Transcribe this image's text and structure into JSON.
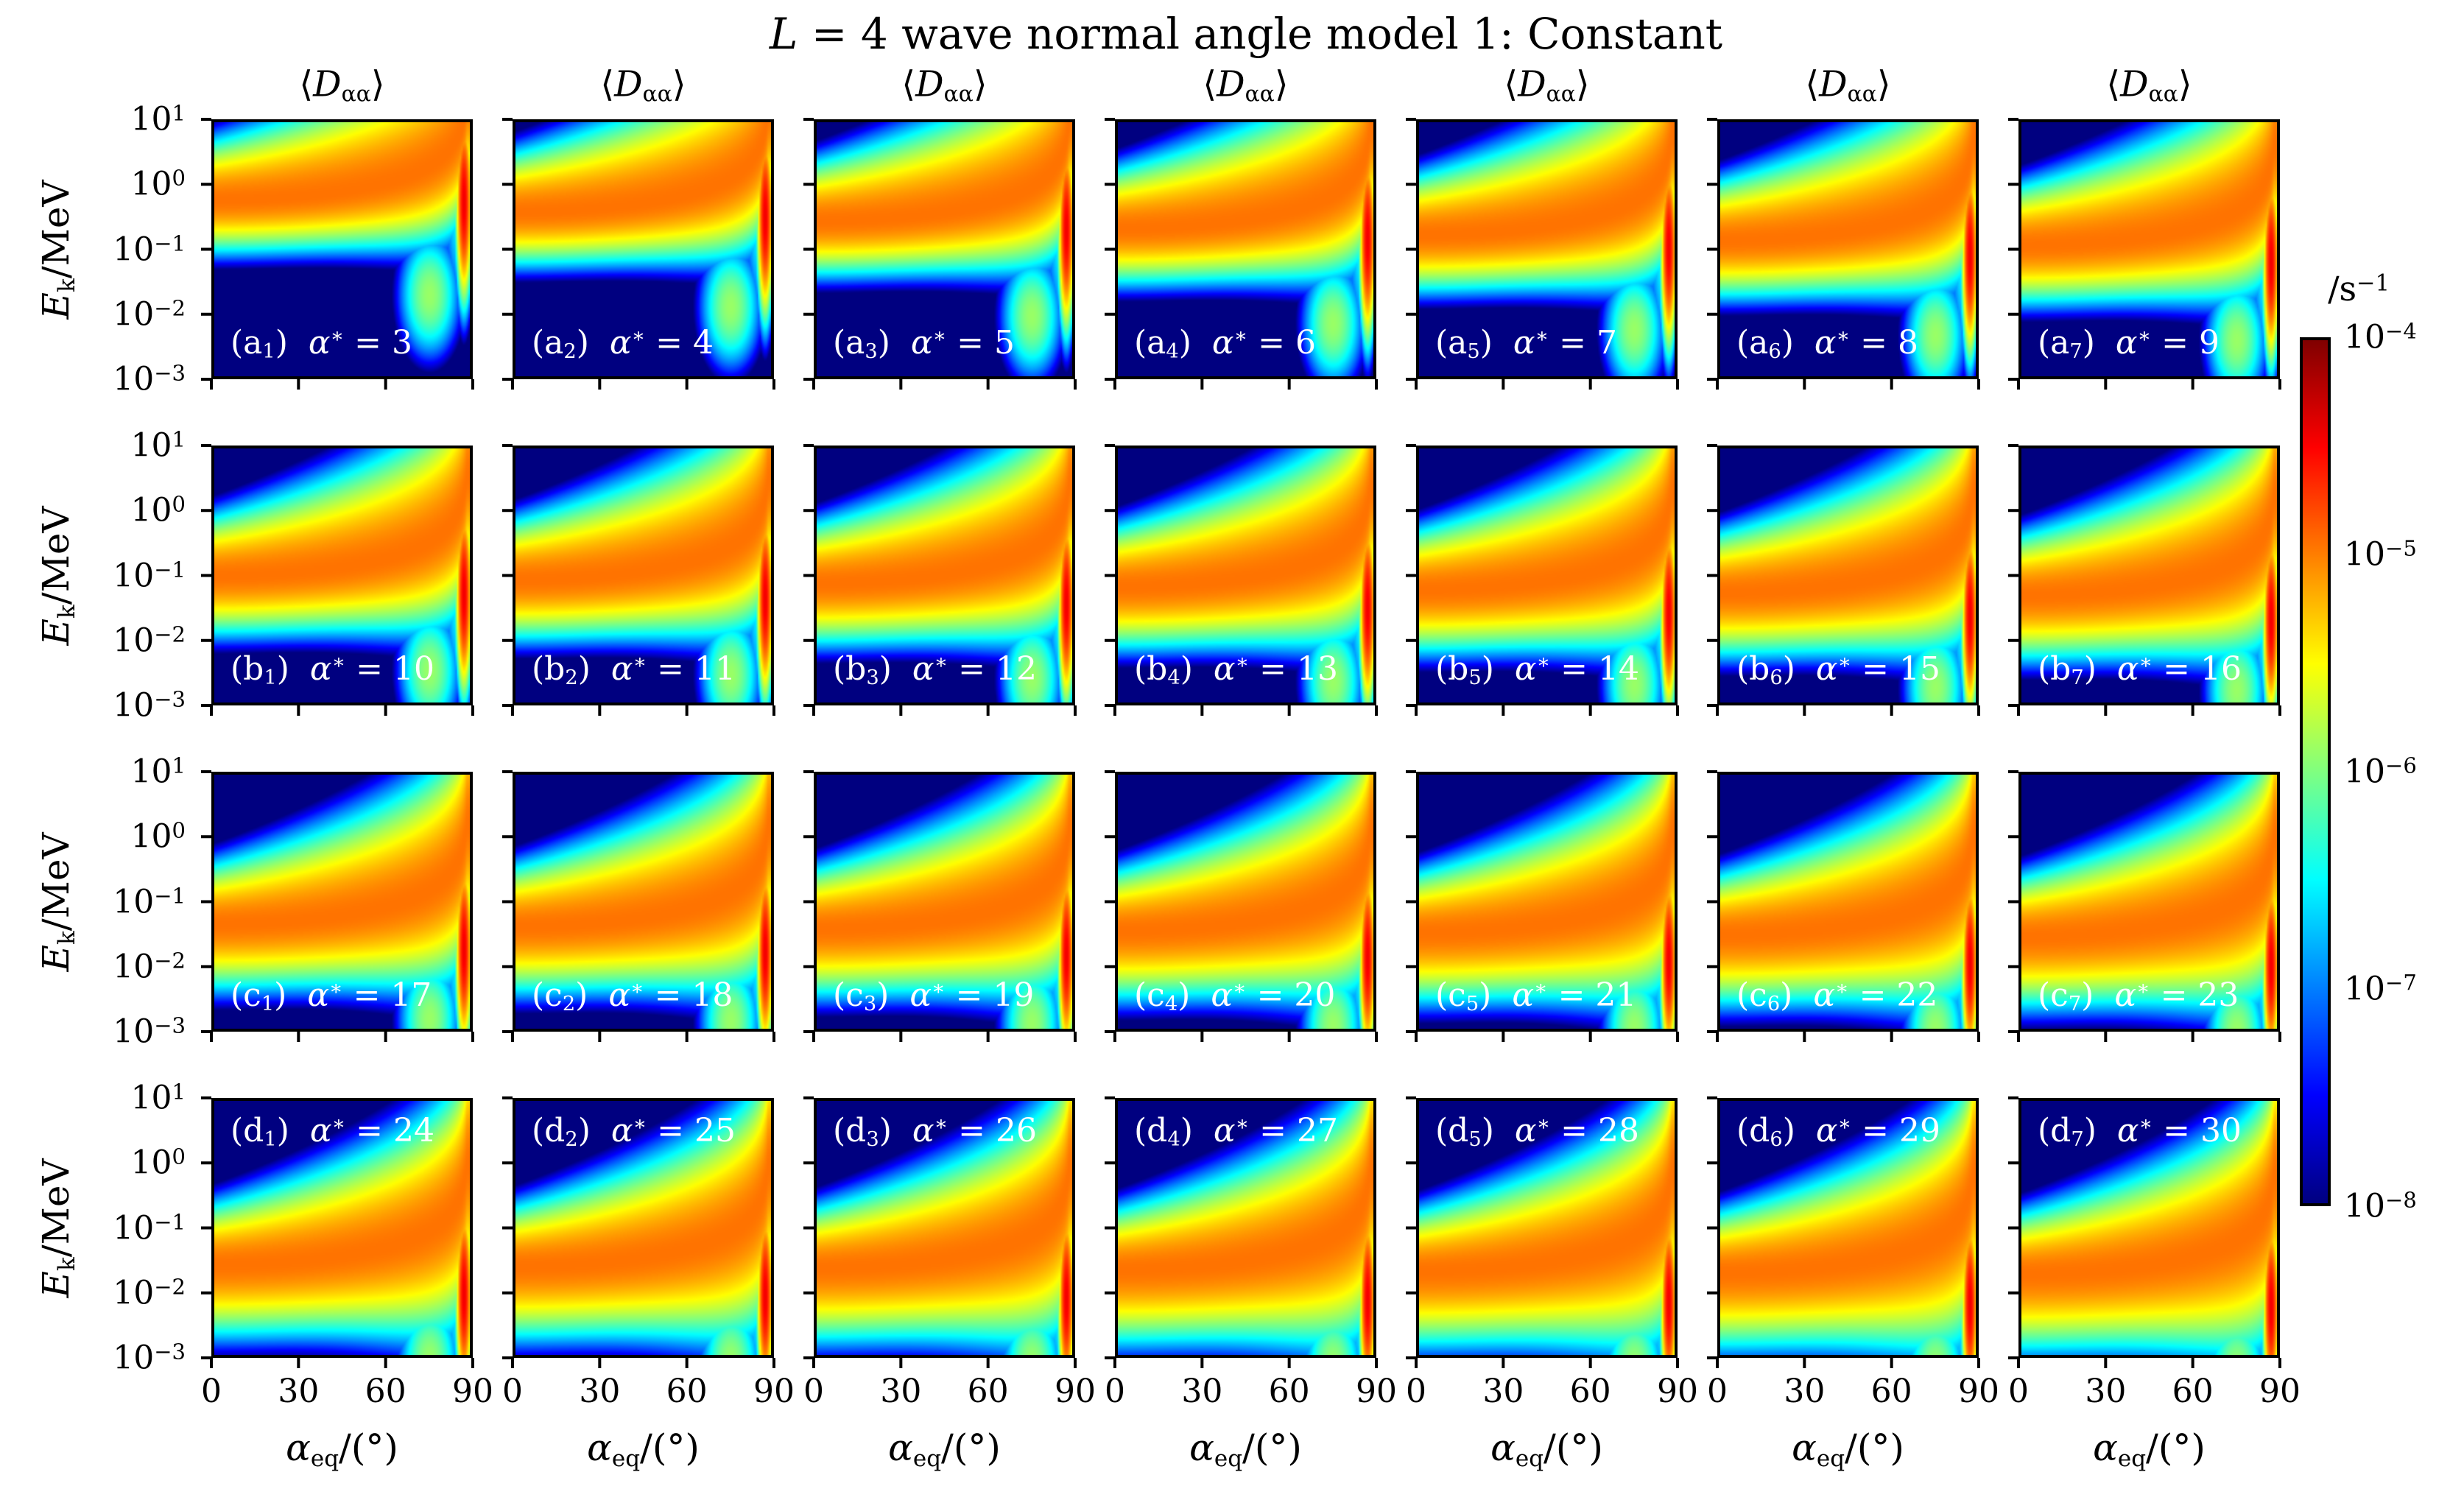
{
  "title": {
    "math_var": "L",
    "rest": " = 4 wave normal angle model 1: Constant"
  },
  "column_title": {
    "open": "⟨",
    "var": "D",
    "sub": "αα",
    "close": "⟩"
  },
  "x_axis": {
    "label": {
      "var": "α",
      "sub": "eq",
      "rest": "/(°)"
    },
    "ticks": [
      "0",
      "30",
      "60",
      "90"
    ]
  },
  "y_axis": {
    "label": {
      "var": "E",
      "sub": "k",
      "rest": "/MeV"
    },
    "ticks": [
      {
        "base": "10",
        "exp": "1"
      },
      {
        "base": "10",
        "exp": "0"
      },
      {
        "base": "10",
        "exp": "−1"
      },
      {
        "base": "10",
        "exp": "−2"
      },
      {
        "base": "10",
        "exp": "−3"
      }
    ]
  },
  "colorbar": {
    "unit_label": {
      "base": "/s",
      "exp": "−1"
    },
    "ticks": [
      {
        "base": "10",
        "exp": "−4"
      },
      {
        "base": "10",
        "exp": "−5"
      },
      {
        "base": "10",
        "exp": "−6"
      },
      {
        "base": "10",
        "exp": "−7"
      },
      {
        "base": "10",
        "exp": "−8"
      }
    ],
    "colormap": "jet"
  },
  "chart_data": {
    "type": "heatmap",
    "title": "L = 4 wave normal angle model 1: Constant",
    "layout": {
      "rows": 4,
      "cols": 7,
      "column_titles": "⟨D_αα⟩ repeated above each of the 7 columns"
    },
    "x": {
      "label": "alpha_eq/(deg)",
      "range": [
        0,
        90
      ],
      "ticks": [
        0,
        30,
        60,
        90
      ],
      "scale": "linear"
    },
    "y": {
      "label": "E_k/MeV",
      "range": [
        0.001,
        10
      ],
      "ticks": [
        10,
        1,
        0.1,
        0.01,
        0.001
      ],
      "scale": "log"
    },
    "z": {
      "label": "<D_alpha_alpha>/s^-1",
      "range": [
        1e-08,
        0.0001
      ],
      "colorbar_ticks": [
        0.0001,
        1e-05,
        1e-06,
        1e-07,
        1e-08
      ],
      "scale": "log",
      "colormap": "jet"
    },
    "panels": [
      {
        "id": "a1",
        "series": "a",
        "index": 1,
        "alpha_star": 3,
        "label": "(a1) α* = 3",
        "label_position": "bottom"
      },
      {
        "id": "a2",
        "series": "a",
        "index": 2,
        "alpha_star": 4,
        "label": "(a2) α* = 4",
        "label_position": "bottom"
      },
      {
        "id": "a3",
        "series": "a",
        "index": 3,
        "alpha_star": 5,
        "label": "(a3) α* = 5",
        "label_position": "bottom"
      },
      {
        "id": "a4",
        "series": "a",
        "index": 4,
        "alpha_star": 6,
        "label": "(a4) α* = 6",
        "label_position": "bottom"
      },
      {
        "id": "a5",
        "series": "a",
        "index": 5,
        "alpha_star": 7,
        "label": "(a5) α* = 7",
        "label_position": "bottom"
      },
      {
        "id": "a6",
        "series": "a",
        "index": 6,
        "alpha_star": 8,
        "label": "(a6) α* = 8",
        "label_position": "bottom"
      },
      {
        "id": "a7",
        "series": "a",
        "index": 7,
        "alpha_star": 9,
        "label": "(a7) α* = 9",
        "label_position": "bottom"
      },
      {
        "id": "b1",
        "series": "b",
        "index": 1,
        "alpha_star": 10,
        "label": "(b1) α* = 10",
        "label_position": "bottom"
      },
      {
        "id": "b2",
        "series": "b",
        "index": 2,
        "alpha_star": 11,
        "label": "(b2) α* = 11",
        "label_position": "bottom"
      },
      {
        "id": "b3",
        "series": "b",
        "index": 3,
        "alpha_star": 12,
        "label": "(b3) α* = 12",
        "label_position": "bottom"
      },
      {
        "id": "b4",
        "series": "b",
        "index": 4,
        "alpha_star": 13,
        "label": "(b4) α* = 13",
        "label_position": "bottom"
      },
      {
        "id": "b5",
        "series": "b",
        "index": 5,
        "alpha_star": 14,
        "label": "(b5) α* = 14",
        "label_position": "bottom"
      },
      {
        "id": "b6",
        "series": "b",
        "index": 6,
        "alpha_star": 15,
        "label": "(b6) α* = 15",
        "label_position": "bottom"
      },
      {
        "id": "b7",
        "series": "b",
        "index": 7,
        "alpha_star": 16,
        "label": "(b7) α* = 16",
        "label_position": "bottom"
      },
      {
        "id": "c1",
        "series": "c",
        "index": 1,
        "alpha_star": 17,
        "label": "(c1) α* = 17",
        "label_position": "bottom"
      },
      {
        "id": "c2",
        "series": "c",
        "index": 2,
        "alpha_star": 18,
        "label": "(c2) α* = 18",
        "label_position": "bottom"
      },
      {
        "id": "c3",
        "series": "c",
        "index": 3,
        "alpha_star": 19,
        "label": "(c3) α* = 19",
        "label_position": "bottom"
      },
      {
        "id": "c4",
        "series": "c",
        "index": 4,
        "alpha_star": 20,
        "label": "(c4) α* = 20",
        "label_position": "bottom"
      },
      {
        "id": "c5",
        "series": "c",
        "index": 5,
        "alpha_star": 21,
        "label": "(c5) α* = 21",
        "label_position": "bottom"
      },
      {
        "id": "c6",
        "series": "c",
        "index": 6,
        "alpha_star": 22,
        "label": "(c6) α* = 22",
        "label_position": "bottom"
      },
      {
        "id": "c7",
        "series": "c",
        "index": 7,
        "alpha_star": 23,
        "label": "(c7) α* = 23",
        "label_position": "bottom"
      },
      {
        "id": "d1",
        "series": "d",
        "index": 1,
        "alpha_star": 24,
        "label": "(d1) α* = 24",
        "label_position": "top"
      },
      {
        "id": "d2",
        "series": "d",
        "index": 2,
        "alpha_star": 25,
        "label": "(d2) α* = 25",
        "label_position": "top"
      },
      {
        "id": "d3",
        "series": "d",
        "index": 3,
        "alpha_star": 26,
        "label": "(d3) α* = 26",
        "label_position": "top"
      },
      {
        "id": "d4",
        "series": "d",
        "index": 4,
        "alpha_star": 27,
        "label": "(d4) α* = 27",
        "label_position": "top"
      },
      {
        "id": "d5",
        "series": "d",
        "index": 5,
        "alpha_star": 28,
        "label": "(d5) α* = 28",
        "label_position": "top"
      },
      {
        "id": "d6",
        "series": "d",
        "index": 6,
        "alpha_star": 29,
        "label": "(d6) α* = 29",
        "label_position": "top"
      },
      {
        "id": "d7",
        "series": "d",
        "index": 7,
        "alpha_star": 30,
        "label": "(d7) α* = 30",
        "label_position": "top"
      }
    ],
    "field_model": {
      "description": "Qualitative synthesis of the bounce-averaged pitch-angle diffusion coefficient field: a resonance band whose energy scales down with alpha*, curving up toward 90 deg, plus a bright quasi-90-degree streak; values clipped to the colorbar range.",
      "logD_min": -8,
      "logD_max": -4,
      "band_E0_coeff": 3.1,
      "band_E0_power": 1.5,
      "band_peak_logD": -4.95,
      "ridge_cos_power": 0.85,
      "ridge_alpha_cap": 89.2,
      "band_sigma_up": 0.52,
      "band_sigma_up_alpha_widen": 1.15,
      "band_sigma_down": 0.42,
      "band_sigma_down_as_widen": 0.55,
      "band_sigma_down_alpha_widen": 0.8,
      "streak_center_alpha": 88.2,
      "streak_sigma_alpha": 1.6,
      "streak_peak_logD": -4.45,
      "streak_E_coeff": 5,
      "streak_E_power": 2,
      "streak_sigma_logE": 0.85,
      "halo_sigma_alpha": 5,
      "halo_peak_logD": -6.3,
      "halo_sigma_logE": 1.15,
      "glow_center_alpha": 76,
      "glow_sigma_alpha": 6.5,
      "glow_offset_logE": -1.5,
      "glow_sigma_logE": 0.6,
      "glow_peak_logD": -5.9
    }
  }
}
